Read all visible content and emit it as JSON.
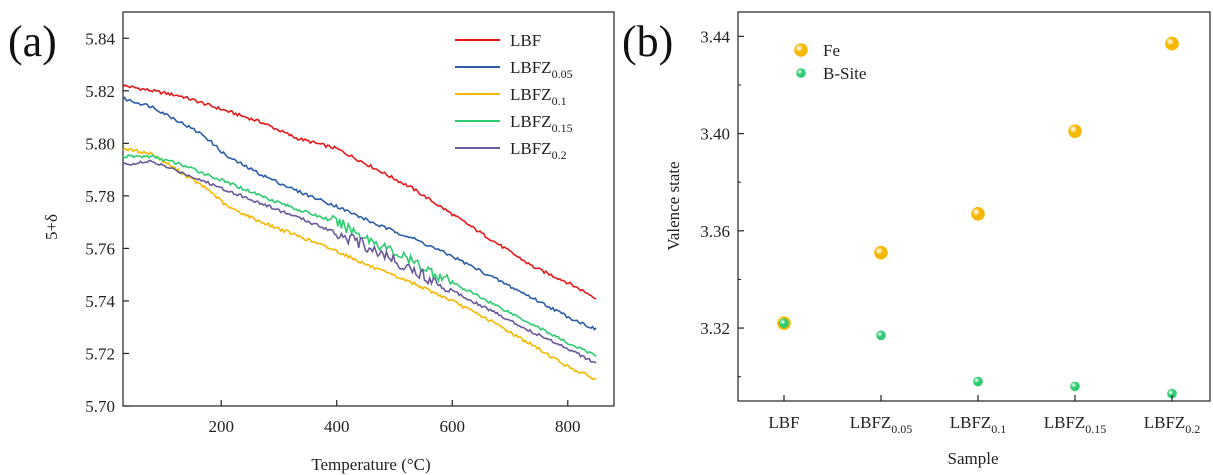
{
  "chart_data": [
    {
      "panel": "(a)",
      "type": "line",
      "xlabel": "Temperature (°C)",
      "ylabel": "5+δ",
      "xlim": [
        30,
        880
      ],
      "ylim": [
        5.7,
        5.85
      ],
      "xticks": [
        200,
        400,
        600,
        800
      ],
      "yticks": [
        5.7,
        5.72,
        5.74,
        5.76,
        5.78,
        5.8,
        5.82,
        5.84
      ],
      "legend_position": "top-right",
      "grid": false,
      "series": [
        {
          "name": "LBF",
          "name_base": "LBF",
          "name_sub": "",
          "color": "#e31a1c",
          "x": [
            30,
            80,
            130,
            200,
            270,
            330,
            400,
            470,
            530,
            600,
            670,
            740,
            800,
            850
          ],
          "y": [
            5.822,
            5.82,
            5.818,
            5.813,
            5.808,
            5.802,
            5.798,
            5.79,
            5.783,
            5.773,
            5.763,
            5.753,
            5.747,
            5.741
          ]
        },
        {
          "name": "LBFZ0.05",
          "name_base": "LBFZ",
          "name_sub": "0.05",
          "color": "#2b5ea7",
          "x": [
            30,
            80,
            130,
            170,
            210,
            270,
            330,
            400,
            470,
            530,
            600,
            670,
            740,
            800,
            850
          ],
          "y": [
            5.817,
            5.814,
            5.808,
            5.803,
            5.795,
            5.788,
            5.782,
            5.776,
            5.769,
            5.764,
            5.757,
            5.749,
            5.741,
            5.734,
            5.729
          ]
        },
        {
          "name": "LBFZ0.1",
          "name_base": "LBFZ",
          "name_sub": "0.1",
          "color": "#f5b800",
          "x": [
            30,
            80,
            130,
            180,
            210,
            270,
            330,
            400,
            470,
            530,
            600,
            670,
            740,
            800,
            850
          ],
          "y": [
            5.798,
            5.796,
            5.789,
            5.782,
            5.776,
            5.77,
            5.765,
            5.759,
            5.752,
            5.747,
            5.74,
            5.732,
            5.723,
            5.715,
            5.71
          ]
        },
        {
          "name": "LBFZ0.15",
          "name_base": "LBFZ",
          "name_sub": "0.15",
          "color": "#2ecc71",
          "x": [
            30,
            80,
            130,
            200,
            270,
            330,
            400,
            470,
            530,
            600,
            670,
            740,
            800,
            850
          ],
          "y": [
            5.795,
            5.795,
            5.792,
            5.786,
            5.78,
            5.775,
            5.77,
            5.762,
            5.755,
            5.747,
            5.739,
            5.731,
            5.724,
            5.719
          ]
        },
        {
          "name": "LBFZ0.2",
          "name_base": "LBFZ",
          "name_sub": "0.2",
          "color": "#6a5a9c",
          "x": [
            30,
            80,
            130,
            200,
            270,
            330,
            400,
            470,
            530,
            600,
            670,
            740,
            800,
            850
          ],
          "y": [
            5.792,
            5.793,
            5.789,
            5.783,
            5.777,
            5.772,
            5.766,
            5.759,
            5.752,
            5.744,
            5.736,
            5.728,
            5.722,
            5.716
          ]
        }
      ]
    },
    {
      "panel": "(b)",
      "type": "scatter",
      "xlabel": "Sample",
      "ylabel": "Valence state",
      "ylim": [
        3.29,
        3.45
      ],
      "yticks": [
        3.32,
        3.36,
        3.4,
        3.44
      ],
      "legend_position": "top-left",
      "grid": false,
      "categories": [
        {
          "base": "LBF",
          "sub": ""
        },
        {
          "base": "LBFZ",
          "sub": "0.05"
        },
        {
          "base": "LBFZ",
          "sub": "0.1"
        },
        {
          "base": "LBFZ",
          "sub": "0.15"
        },
        {
          "base": "LBFZ",
          "sub": "0.2"
        }
      ],
      "series": [
        {
          "name": "Fe",
          "color": "#f5b800",
          "values": [
            3.322,
            3.351,
            3.367,
            3.401,
            3.437
          ]
        },
        {
          "name": "B-Site",
          "color": "#2ecc71",
          "values": [
            3.322,
            3.317,
            3.298,
            3.296,
            3.293
          ]
        }
      ]
    }
  ]
}
